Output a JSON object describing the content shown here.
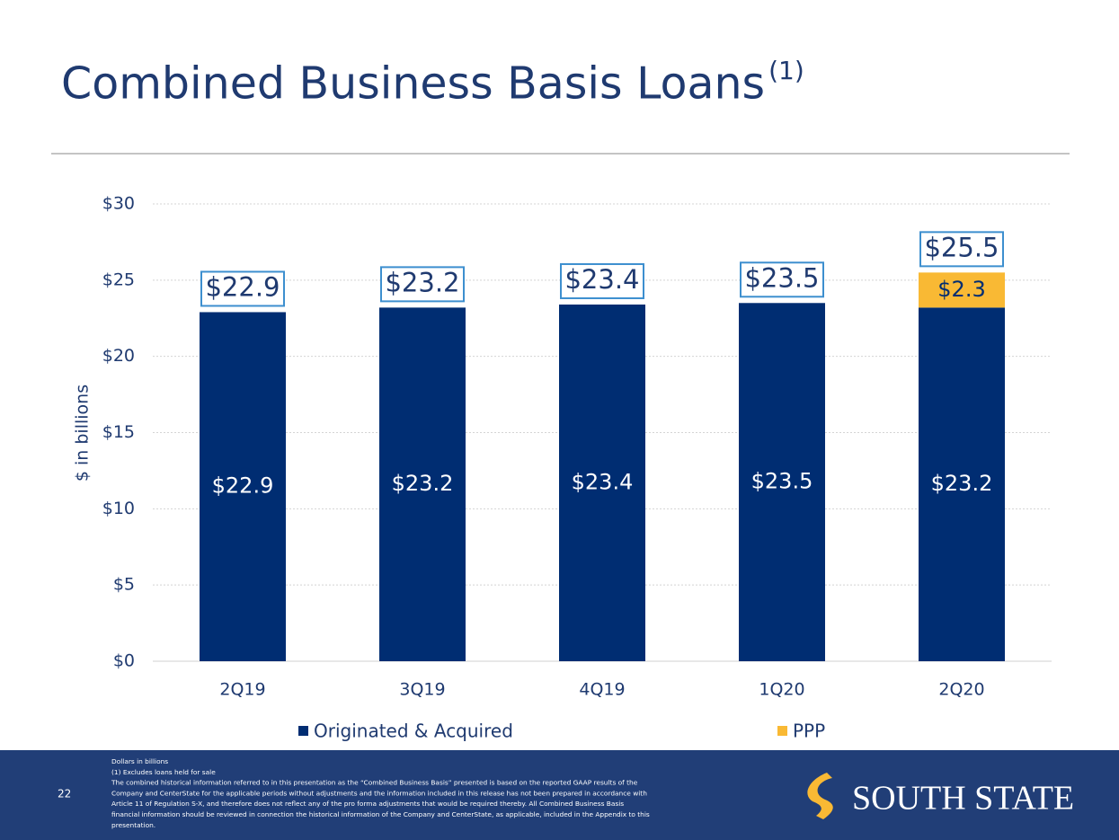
{
  "chart_data": {
    "type": "stacked_bar",
    "title": "Combined Business Basis Loans",
    "title_superscript": "(1)",
    "y_label": "$ in billions",
    "categories": [
      "2Q19",
      "3Q19",
      "4Q19",
      "1Q20",
      "2Q20"
    ],
    "series": [
      {
        "name": "Originated & Acquired",
        "color": "#002d72",
        "label_color": "#ffffff",
        "values": [
          22.9,
          23.2,
          23.4,
          23.5,
          23.2
        ],
        "value_labels": [
          "$22.9",
          "$23.2",
          "$23.4",
          "$23.5",
          "$23.2"
        ]
      },
      {
        "name": "PPP",
        "color": "#f9b934",
        "label_color": "#002d72",
        "values": [
          null,
          null,
          null,
          null,
          2.3
        ],
        "value_labels": [
          null,
          null,
          null,
          null,
          "$2.3"
        ]
      }
    ],
    "totals": {
      "values": [
        22.9,
        23.2,
        23.4,
        23.5,
        25.5
      ],
      "value_labels": [
        "$22.9",
        "$23.2",
        "$23.4",
        "$23.5",
        "$25.5"
      ]
    },
    "ylim": [
      0,
      30
    ],
    "yticks": [
      {
        "value": 0,
        "label": "$0"
      },
      {
        "value": 5,
        "label": "$5"
      },
      {
        "value": 10,
        "label": "$10"
      },
      {
        "value": 15,
        "label": "$15"
      },
      {
        "value": 20,
        "label": "$20"
      },
      {
        "value": 25,
        "label": "$25"
      },
      {
        "value": 30,
        "label": "$30"
      }
    ],
    "grid": true,
    "legend": "bottom"
  },
  "footer": {
    "page_number": "22",
    "notes": [
      "Dollars in billions",
      "(1)     Excludes loans held for sale",
      "The combined historical information referred to in this presentation as the “Combined Business Basis” presented is based on the reported GAAP results of the",
      "Company and CenterState for the applicable periods without adjustments and the information included in this release has not been prepared in accordance with",
      "Article 11 of Regulation S-X, and therefore does not reflect any of the pro forma adjustments that would be required thereby.  All Combined Business Basis",
      "financial information should be reviewed in connection the historical information of the Company and CenterState, as applicable, included in the Appendix to this",
      "presentation."
    ],
    "logo_text": "SOUTH STATE"
  }
}
